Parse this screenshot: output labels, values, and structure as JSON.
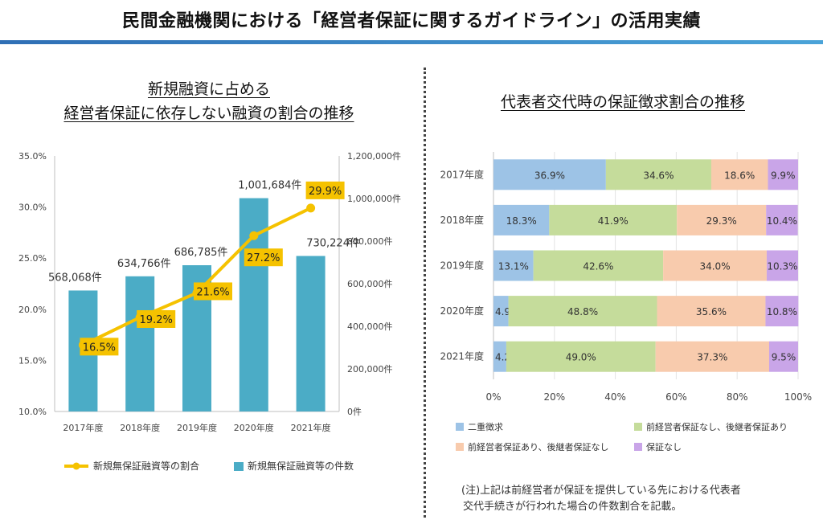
{
  "header": {
    "title": "民間金融機関における「経営者保証に関するガイドライン」の活用実績"
  },
  "left_chart_title": {
    "line1": "新規融資に占める",
    "line2": "経営者保証に依存しない融資の割合の推移"
  },
  "right_chart_title": "代表者交代時の保証徴求割合の推移",
  "note": {
    "line1": "(注)上記は前経営者が保証を提供している先における代表者",
    "line2": "交代手続きが行われた場合の件数割合を記載。"
  },
  "colors": {
    "bar": "#4bacc6",
    "line": "#f5c200",
    "label_bg": "#f5c200",
    "s1": "#9dc3e6",
    "s2": "#c5dc9b",
    "s3": "#f8cbad",
    "s4": "#c9a5e8"
  },
  "chart_data": [
    {
      "type": "bar+line",
      "categories": [
        "2017年度",
        "2018年度",
        "2019年度",
        "2020年度",
        "2021年度"
      ],
      "series": [
        {
          "name": "新規無保証融資等の件数",
          "type": "bar",
          "axis": "right",
          "values": [
            568068,
            634766,
            686785,
            1001684,
            730224
          ],
          "labels": [
            "568,068件",
            "634,766件",
            "686,785件",
            "1,001,684件",
            "730,224件"
          ]
        },
        {
          "name": "新規無保証融資等の割合",
          "type": "line",
          "axis": "left",
          "values": [
            16.5,
            19.2,
            21.6,
            27.2,
            29.9
          ],
          "labels": [
            "16.5%",
            "19.2%",
            "21.6%",
            "27.2%",
            "29.9%"
          ]
        }
      ],
      "y_left": {
        "range": [
          10,
          35
        ],
        "ticks": [
          "10.0%",
          "15.0%",
          "20.0%",
          "25.0%",
          "30.0%",
          "35.0%"
        ]
      },
      "y_right": {
        "range": [
          0,
          1200000
        ],
        "ticks": [
          "0件",
          "200,000件",
          "400,000件",
          "600,000件",
          "800,000件",
          "1,000,000件",
          "1,200,000件"
        ]
      },
      "legend_position": "bottom"
    },
    {
      "type": "bar",
      "orientation": "horizontal",
      "stacked": true,
      "categories": [
        "2017年度",
        "2018年度",
        "2019年度",
        "2020年度",
        "2021年度"
      ],
      "series": [
        {
          "name": "二重徴求",
          "values": [
            36.9,
            18.3,
            13.1,
            4.9,
            4.2
          ],
          "labels": [
            "36.9%",
            "18.3%",
            "13.1%",
            "4.9%",
            "4.2%"
          ]
        },
        {
          "name": "前経営者保証なし、後継者保証あり",
          "values": [
            34.6,
            41.9,
            42.6,
            48.8,
            49.0
          ],
          "labels": [
            "34.6%",
            "41.9%",
            "42.6%",
            "48.8%",
            "49.0%"
          ]
        },
        {
          "name": "前経営者保証あり、後継者保証なし",
          "values": [
            18.6,
            29.3,
            34.0,
            35.6,
            37.3
          ],
          "labels": [
            "18.6%",
            "29.3%",
            "34.0%",
            "35.6%",
            "37.3%"
          ]
        },
        {
          "name": "保証なし",
          "values": [
            9.9,
            10.4,
            10.3,
            10.8,
            9.5
          ],
          "labels": [
            "9.9%",
            "10.4%",
            "10.3%",
            "10.8%",
            "9.5%"
          ]
        }
      ],
      "x_axis": {
        "range": [
          0,
          100
        ],
        "ticks": [
          "0%",
          "20%",
          "40%",
          "60%",
          "80%",
          "100%"
        ]
      },
      "legend_position": "bottom"
    }
  ]
}
